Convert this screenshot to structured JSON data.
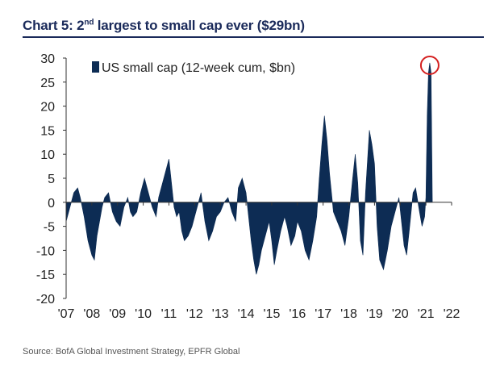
{
  "header": {
    "title_prefix": "Chart 5: 2",
    "title_sup": "nd",
    "title_suffix": " largest to small cap ever ($29bn)"
  },
  "footer": {
    "source": "Source:  BofA Global Investment Strategy, EPFR Global"
  },
  "colors": {
    "series": "#0d2c54",
    "highlight": "#d42020",
    "axis": "#333333",
    "title": "#1a2a5a"
  },
  "chart_data": {
    "type": "area",
    "title": "Chart 5: 2nd largest to small cap ever ($29bn)",
    "ylim": [
      -20,
      30
    ],
    "yticks": [
      30,
      25,
      20,
      15,
      10,
      5,
      0,
      -5,
      -10,
      -15,
      -20
    ],
    "xlim": [
      2007,
      2022
    ],
    "xticks": [
      "'07",
      "'08",
      "'09",
      "'10",
      "'11",
      "'12",
      "'13",
      "'14",
      "'15",
      "'16",
      "'17",
      "'18",
      "'19",
      "'20",
      "'21",
      "'22"
    ],
    "legend": "top-left",
    "grid": false,
    "series": [
      {
        "name": "US small cap (12-week cum, $bn)",
        "x": [
          2007.0,
          2007.15,
          2007.3,
          2007.45,
          2007.55,
          2007.7,
          2007.85,
          2008.0,
          2008.1,
          2008.2,
          2008.3,
          2008.4,
          2008.5,
          2008.65,
          2008.8,
          2008.95,
          2009.1,
          2009.25,
          2009.4,
          2009.5,
          2009.6,
          2009.75,
          2009.9,
          2010.05,
          2010.2,
          2010.35,
          2010.5,
          2010.6,
          2010.7,
          2010.85,
          2011.0,
          2011.1,
          2011.2,
          2011.3,
          2011.4,
          2011.5,
          2011.6,
          2011.75,
          2011.9,
          2012.0,
          2012.1,
          2012.25,
          2012.4,
          2012.55,
          2012.7,
          2012.85,
          2013.0,
          2013.15,
          2013.3,
          2013.45,
          2013.6,
          2013.7,
          2013.85,
          2014.0,
          2014.1,
          2014.2,
          2014.3,
          2014.4,
          2014.5,
          2014.6,
          2014.75,
          2014.9,
          2015.0,
          2015.1,
          2015.2,
          2015.35,
          2015.5,
          2015.6,
          2015.75,
          2015.9,
          2016.0,
          2016.15,
          2016.3,
          2016.45,
          2016.6,
          2016.75,
          2016.85,
          2016.95,
          2017.05,
          2017.15,
          2017.25,
          2017.4,
          2017.55,
          2017.7,
          2017.85,
          2018.0,
          2018.15,
          2018.25,
          2018.35,
          2018.45,
          2018.55,
          2018.65,
          2018.8,
          2018.9,
          2019.0,
          2019.1,
          2019.2,
          2019.35,
          2019.5,
          2019.65,
          2019.8,
          2019.95,
          2020.05,
          2020.15,
          2020.25,
          2020.35,
          2020.5,
          2020.6,
          2020.75,
          2020.85,
          2020.95,
          2021.0,
          2021.05,
          2021.1,
          2021.15,
          2021.2,
          2021.25
        ],
        "values": [
          -4,
          -1,
          2,
          3,
          1,
          -3,
          -8,
          -11,
          -12,
          -7,
          -4,
          -1,
          1,
          2,
          -2,
          -4,
          -5,
          -1,
          1,
          -2,
          -3,
          -2,
          2,
          5,
          2,
          -1,
          -3,
          1,
          3,
          6,
          9,
          4,
          -1,
          -3,
          -2,
          -6,
          -8,
          -7,
          -5,
          -3,
          -1,
          2,
          -4,
          -8,
          -6,
          -3,
          -2,
          0,
          1,
          -2,
          -4,
          3,
          5,
          2,
          -3,
          -8,
          -12,
          -15,
          -13,
          -10,
          -7,
          -4,
          -8,
          -13,
          -10,
          -6,
          -3,
          -5,
          -9,
          -7,
          -4,
          -6,
          -10,
          -12,
          -8,
          -3,
          5,
          12,
          18,
          13,
          6,
          -2,
          -4,
          -6,
          -9,
          -3,
          5,
          10,
          4,
          -8,
          -11,
          2,
          15,
          12,
          8,
          -5,
          -12,
          -14,
          -10,
          -5,
          -2,
          1,
          -4,
          -9,
          -11,
          -6,
          2,
          3,
          -2,
          -5,
          -3,
          1,
          18,
          27,
          29,
          27,
          0
        ]
      }
    ],
    "highlight": {
      "x": 2021.15,
      "y": 28.5
    }
  }
}
